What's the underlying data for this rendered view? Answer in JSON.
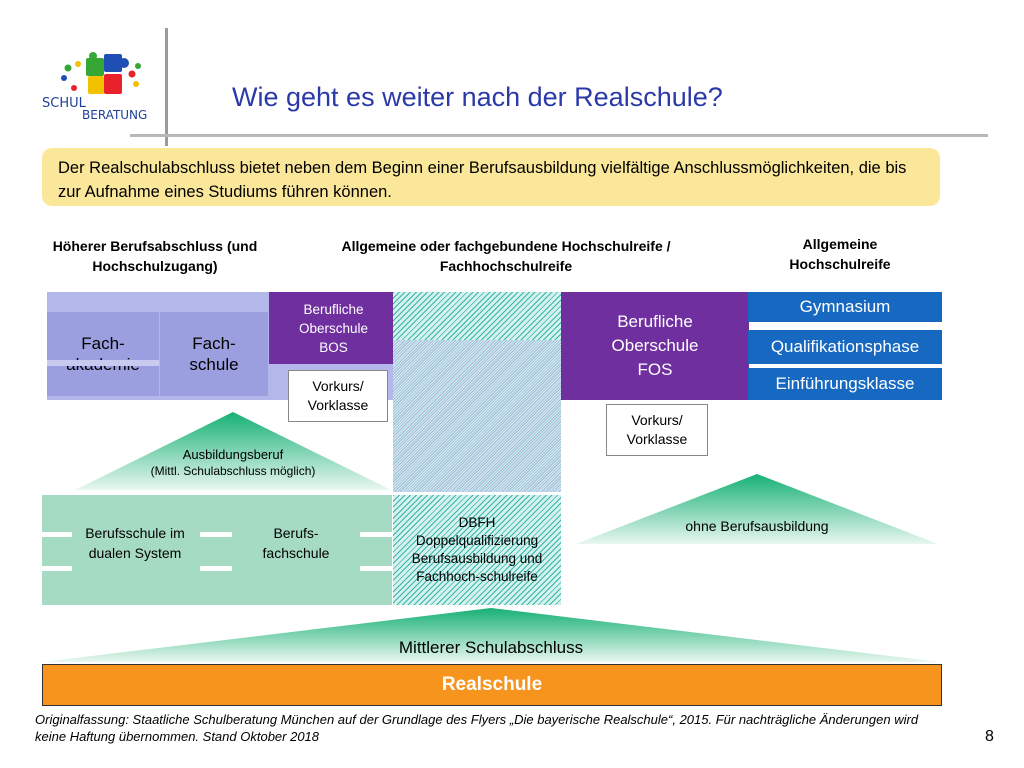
{
  "slide": {
    "title": "Wie geht es weiter nach der Realschule?",
    "page_number": "8"
  },
  "logo": {
    "line1": "SCHUL",
    "line2": "BERATUNG"
  },
  "intro": {
    "text": "Der Realschulabschluss bietet neben dem Beginn einer Berufsausbildung vielfältige Anschlussmöglichkeiten, die bis zur Aufnahme eines Studiums führen können."
  },
  "headers": {
    "left": "Höherer Berufsabschluss (und Hochschulzugang)",
    "middle": "Allgemeine oder fachgebundene Hochschulreife / Fachhochschulreife",
    "right": "Allgemeine Hochschulreife"
  },
  "boxes": {
    "fachakademie": "Fach-akademie",
    "fachschule": "Fach-schule",
    "bos": "Berufliche Oberschule BOS",
    "vorkurs_bos": "Vorkurs/ Vorklasse",
    "fos": "Berufliche Oberschule FOS",
    "vorkurs_fos": "Vorkurs/ Vorklasse",
    "gymnasium": "Gymnasium",
    "qualifikationsphase": "Qualifikationsphase",
    "einfuehrungsklasse": "Einführungsklasse",
    "ausbildungsberuf": "Ausbildungsberuf",
    "ausbildungsberuf_note": "(Mittl. Schulabschluss möglich)",
    "berufsschule": "Berufsschule im dualen System",
    "berufsfachschule": "Berufs-fachschule",
    "dbfh": "DBFH Doppelqualifizierung Berufsausbildung und Fachhoch-schulreife",
    "ohne": "ohne Berufsausbildung",
    "mittlerer": "Mittlerer Schulabschluss",
    "realschule": "Realschule"
  },
  "colors": {
    "title": "#2b3aa8",
    "intro_bg": "#fbe79a",
    "purple": "#6f2f9f",
    "lavender": "#9b9fe0",
    "blue": "#1768c0",
    "green_light": "#a6dbc3",
    "green_accent": "#16b075",
    "orange": "#f7941d"
  },
  "footer": {
    "text": "Originalfassung: Staatliche Schulberatung München auf der Grundlage des Flyers „Die bayerische Realschule“, 2015. Für nachträgliche Änderungen wird keine Haftung übernommen. Stand Oktober 2018"
  }
}
